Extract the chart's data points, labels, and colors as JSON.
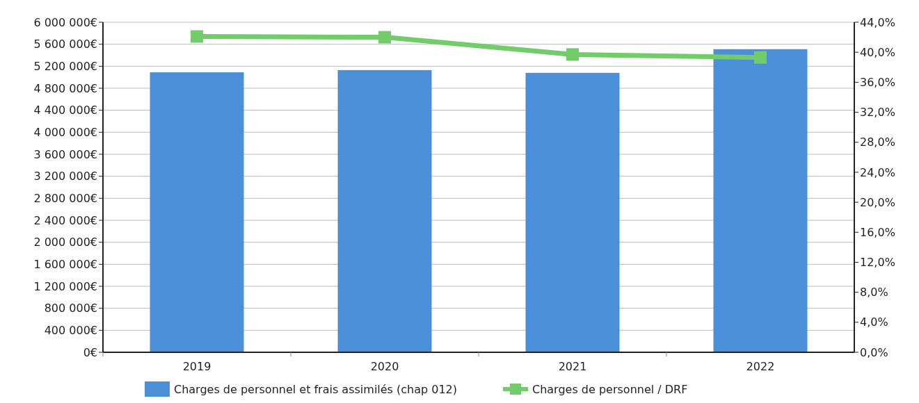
{
  "chart_data": {
    "type": "bar",
    "categories": [
      "2019",
      "2020",
      "2021",
      "2022"
    ],
    "series": [
      {
        "name": "Charges de personnel et frais assimilés (chap 012)",
        "color": "#4a8fd8",
        "values": [
          5090000,
          5130000,
          5080000,
          5510000
        ]
      },
      {
        "name": "Charges de personnel / DRF",
        "type": "line",
        "axis": "y2",
        "color": "#72cc6a",
        "values": [
          42.1,
          42.0,
          39.7,
          39.3
        ],
        "marker": "square"
      }
    ],
    "ylim": [
      0,
      6000000
    ],
    "yticks": [
      {
        "value": 0,
        "label": "0€"
      },
      {
        "value": 400000,
        "label": "400 000€"
      },
      {
        "value": 800000,
        "label": "800 000€"
      },
      {
        "value": 1200000,
        "label": "1 200 000€"
      },
      {
        "value": 1600000,
        "label": "1 600 000€"
      },
      {
        "value": 2000000,
        "label": "2 000 000€"
      },
      {
        "value": 2400000,
        "label": "2 400 000€"
      },
      {
        "value": 2800000,
        "label": "2 800 000€"
      },
      {
        "value": 3200000,
        "label": "3 200 000€"
      },
      {
        "value": 3600000,
        "label": "3 600 000€"
      },
      {
        "value": 4000000,
        "label": "4 000 000€"
      },
      {
        "value": 4400000,
        "label": "4 400 000€"
      },
      {
        "value": 4800000,
        "label": "4 800 000€"
      },
      {
        "value": 5200000,
        "label": "5 200 000€"
      },
      {
        "value": 5600000,
        "label": "5 600 000€"
      },
      {
        "value": 6000000,
        "label": "6 000 000€"
      }
    ],
    "y2lim": [
      0,
      44
    ],
    "y2ticks": [
      {
        "value": 0,
        "label": "0,0%"
      },
      {
        "value": 4,
        "label": "4,0%"
      },
      {
        "value": 8,
        "label": "8,0%"
      },
      {
        "value": 12,
        "label": "12,0%"
      },
      {
        "value": 16,
        "label": "16,0%"
      },
      {
        "value": 20,
        "label": "20,0%"
      },
      {
        "value": 24,
        "label": "24,0%"
      },
      {
        "value": 28,
        "label": "28,0%"
      },
      {
        "value": 32,
        "label": "32,0%"
      },
      {
        "value": 36,
        "label": "36,0%"
      },
      {
        "value": 40,
        "label": "40,0%"
      },
      {
        "value": 44,
        "label": "44,0%"
      }
    ],
    "grid": "y",
    "legend": "bottom"
  }
}
